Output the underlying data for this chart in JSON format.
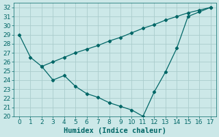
{
  "xlabel": "Humidex (Indice chaleur)",
  "background_color": "#cce8e8",
  "grid_color": "#aacccc",
  "line_color": "#006666",
  "xlim": [
    -0.5,
    17.5
  ],
  "ylim": [
    20,
    32.5
  ],
  "xticks": [
    0,
    1,
    2,
    3,
    4,
    5,
    6,
    7,
    8,
    9,
    10,
    11,
    12,
    13,
    14,
    15,
    16,
    17
  ],
  "yticks": [
    20,
    21,
    22,
    23,
    24,
    25,
    26,
    27,
    28,
    29,
    30,
    31,
    32
  ],
  "series1_x": [
    0,
    1,
    2,
    3,
    4,
    5,
    6,
    7,
    8,
    9,
    10,
    11,
    12,
    13,
    14,
    15,
    16,
    17
  ],
  "series1_y": [
    29,
    26.5,
    25.5,
    24.0,
    24.5,
    23.3,
    22.5,
    22.1,
    21.5,
    21.1,
    20.7,
    20.0,
    22.7,
    24.9,
    27.5,
    31.0,
    31.5,
    32.0
  ],
  "series2_x": [
    2,
    3,
    4,
    5,
    6,
    7,
    8,
    9,
    10,
    11,
    12,
    13,
    14,
    15,
    16,
    17
  ],
  "series2_y": [
    25.5,
    26.0,
    26.5,
    27.0,
    27.4,
    27.8,
    28.3,
    28.7,
    29.2,
    29.7,
    30.1,
    30.6,
    31.0,
    31.4,
    31.7,
    32.0
  ],
  "tick_labelsize": 6.5,
  "xlabel_fontsize": 7.5
}
